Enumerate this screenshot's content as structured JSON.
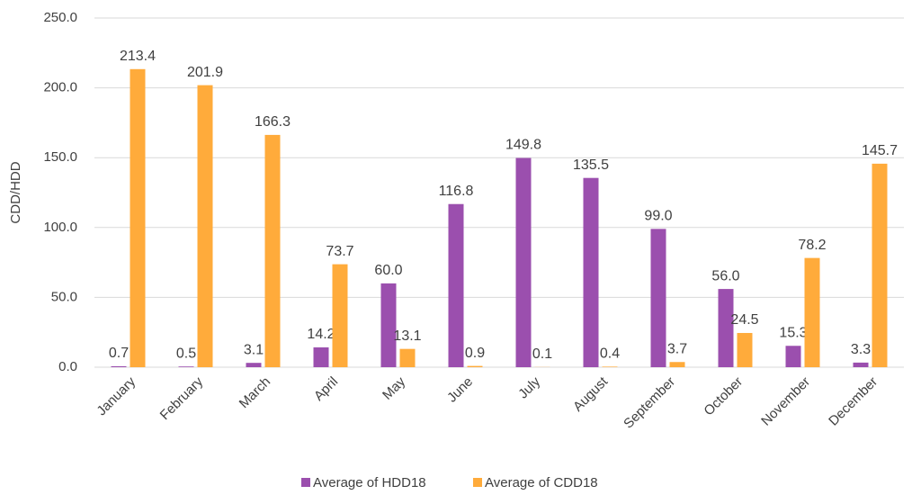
{
  "chart_data": {
    "type": "bar",
    "y_label": "CDD/HDD",
    "categories": [
      "January",
      "February",
      "March",
      "April",
      "May",
      "June",
      "July",
      "August",
      "September",
      "October",
      "November",
      "December"
    ],
    "series": [
      {
        "name": "Average of HDD18",
        "color": "#9b4fae",
        "values": [
          0.7,
          0.5,
          3.1,
          14.2,
          60.0,
          116.8,
          149.8,
          135.5,
          99.0,
          56.0,
          15.3,
          3.3
        ],
        "value_labels": [
          "0.7",
          "0.5",
          "3.1",
          "14.2",
          "60.0",
          "116.8",
          "149.8",
          "135.5",
          "99.0",
          "56.0",
          "15.3",
          "3.3"
        ]
      },
      {
        "name": "Average of CDD18",
        "color": "#ffab3b",
        "values": [
          213.4,
          201.9,
          166.3,
          73.7,
          13.1,
          0.9,
          0.1,
          0.4,
          3.7,
          24.5,
          78.2,
          145.7
        ],
        "value_labels": [
          "213.4",
          "201.9",
          "166.3",
          "73.7",
          "13.1",
          "0.9",
          "0.1",
          "0.4",
          "3.7",
          "24.5",
          "78.2",
          "145.7"
        ]
      }
    ],
    "ylim": [
      0,
      250
    ],
    "yticks": [
      {
        "value": 0,
        "label": "0.0"
      },
      {
        "value": 50,
        "label": "50.0"
      },
      {
        "value": 100,
        "label": "100.0"
      },
      {
        "value": 150,
        "label": "150.0"
      },
      {
        "value": 200,
        "label": "200.0"
      },
      {
        "value": 250,
        "label": "250.0"
      }
    ],
    "grid": true,
    "legend": "bottom"
  }
}
